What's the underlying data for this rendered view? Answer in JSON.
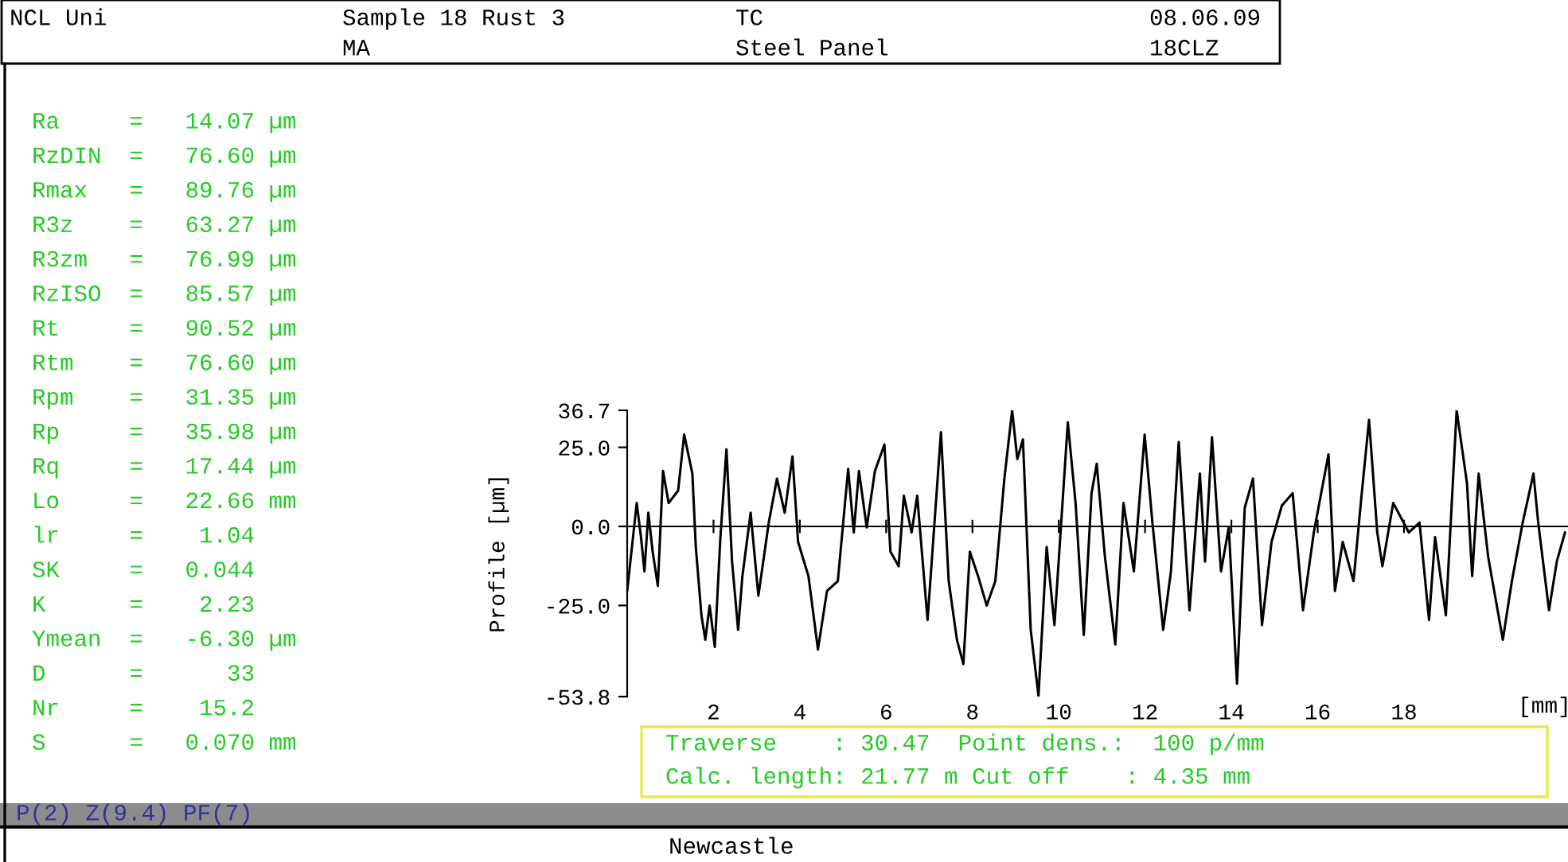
{
  "chart_data": {
    "type": "line",
    "xlabel": "[mm]",
    "ylabel": "Profile [µm]",
    "x": [
      0.0,
      0.22,
      0.32,
      0.4,
      0.49,
      0.59,
      0.71,
      0.83,
      0.96,
      1.18,
      1.32,
      1.51,
      1.59,
      1.72,
      1.81,
      1.91,
      2.03,
      2.16,
      2.3,
      2.43,
      2.57,
      2.67,
      2.86,
      3.04,
      3.28,
      3.47,
      3.65,
      3.83,
      3.96,
      4.2,
      4.42,
      4.63,
      4.88,
      5.12,
      5.25,
      5.37,
      5.55,
      5.74,
      5.96,
      6.1,
      6.29,
      6.41,
      6.59,
      6.72,
      6.96,
      7.27,
      7.45,
      7.64,
      7.79,
      7.94,
      8.13,
      8.33,
      8.53,
      8.74,
      8.92,
      9.04,
      9.17,
      9.23,
      9.35,
      9.53,
      9.72,
      9.9,
      10.21,
      10.39,
      10.58,
      10.76,
      10.88,
      11.07,
      11.31,
      11.5,
      11.74,
      11.99,
      12.17,
      12.42,
      12.6,
      12.78,
      13.03,
      13.27,
      13.39,
      13.55,
      13.76,
      13.94,
      14.13,
      14.31,
      14.5,
      14.71,
      14.93,
      15.17,
      15.42,
      15.66,
      15.91,
      16.25,
      16.4,
      16.58,
      16.83,
      17.01,
      17.19,
      17.38,
      17.5,
      17.75,
      18.11,
      18.36,
      18.58,
      18.72,
      18.97,
      19.22,
      19.46,
      19.58,
      19.73,
      19.95,
      20.29,
      20.5,
      20.75,
      21.0,
      21.11,
      21.36,
      21.54,
      21.73
    ],
    "series": [
      {
        "color": "#000000",
        "values": [
          -20.4,
          7.4,
          -3.4,
          -14.2,
          4.3,
          -8.0,
          -18.8,
          17.5,
          7.4,
          11.3,
          29.0,
          16.7,
          -6.5,
          -28.1,
          -35.8,
          -25.0,
          -38.1,
          -3.4,
          24.4,
          -11.1,
          -32.7,
          -15.7,
          4.3,
          -21.9,
          1.2,
          15.1,
          4.3,
          22.1,
          -4.9,
          -15.7,
          -38.9,
          -20.4,
          -17.3,
          18.2,
          -1.9,
          17.5,
          -0.3,
          17.5,
          25.9,
          -8.0,
          -12.6,
          9.7,
          -1.9,
          9.7,
          -29.6,
          29.8,
          -17.3,
          -35.8,
          -43.5,
          -8.0,
          -15.7,
          -25.0,
          -17.3,
          15.1,
          36.7,
          21.3,
          27.5,
          7.4,
          -32.7,
          -53.5,
          -6.5,
          -31.2,
          32.9,
          7.4,
          -34.3,
          10.5,
          19.8,
          -9.6,
          -37.3,
          7.4,
          -14.2,
          29.0,
          1.2,
          -32.7,
          -14.2,
          26.7,
          -26.5,
          16.7,
          -11.1,
          28.2,
          -14.2,
          -0.3,
          -49.7,
          5.9,
          15.1,
          -31.2,
          -4.9,
          6.6,
          10.5,
          -26.5,
          -1.9,
          22.8,
          -20.4,
          -4.9,
          -17.3,
          8.9,
          33.7,
          -1.9,
          -12.6,
          7.4,
          -1.9,
          1.2,
          -29.6,
          -3.4,
          -28.1,
          36.7,
          13.6,
          -15.7,
          16.7,
          -9.6,
          -35.8,
          -17.3,
          1.2,
          16.7,
          1.2,
          -26.5,
          -11.1,
          -1.9
        ]
      }
    ],
    "xlim": [
      0,
      21.8
    ],
    "xticks": [
      2,
      4,
      6,
      8,
      10,
      12,
      14,
      16,
      18
    ],
    "ylim": [
      -53.8,
      36.7
    ],
    "yticks": [
      {
        "value": -53.8,
        "label": "-53.8"
      },
      {
        "value": -25.0,
        "label": "-25.0"
      },
      {
        "value": 0.0,
        "label": "0.0"
      },
      {
        "value": 25.0,
        "label": "25.0"
      },
      {
        "value": 36.7,
        "label": "36.7"
      }
    ],
    "legend": false,
    "marker": "none",
    "line_style": "solid",
    "annotations": [
      "NCL Uni",
      "Sample 18 Rust 3",
      "MA",
      "TC",
      "Steel Panel",
      "08.06.09",
      "18CLZ",
      "Ra     =   14.07 µm",
      "RzDIN  =   76.60 µm",
      "Rmax   =   89.76 µm",
      "R3z    =   63.27 µm",
      "R3zm   =   76.99 µm",
      "RzISO  =   85.57 µm",
      "Rt     =   90.52 µm",
      "Rtm    =   76.60 µm",
      "Rpm    =   31.35 µm",
      "Rp     =   35.98 µm",
      "Rq     =   17.44 µm",
      "Lo     =   22.66 mm",
      "lr     =    1.04",
      "SK     =   0.044",
      "K      =    2.23",
      "Ymean  =   -6.30 µm",
      "D      =      33",
      "Nr     =    15.2",
      "S      =   0.070 mm",
      "Traverse    : 30.47  Point dens.:  100 p/mm",
      "Calc. length: 21.77 m Cut off    : 4.35 mm",
      "P(2) Z(9.4) PF(7)",
      "Newcastle"
    ]
  }
}
